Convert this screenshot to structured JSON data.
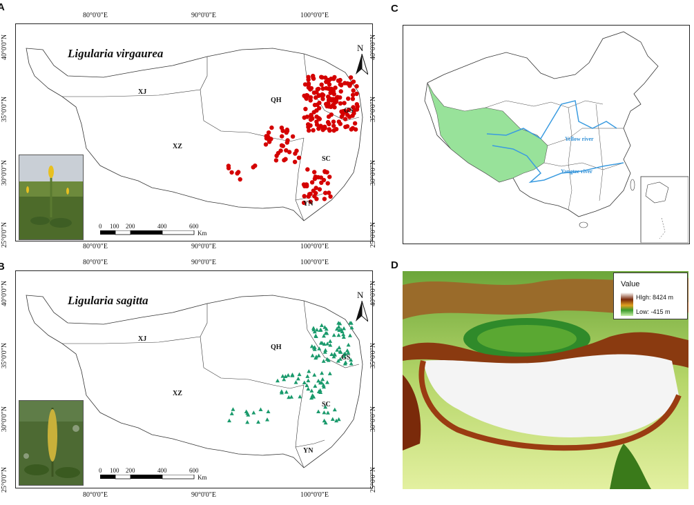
{
  "panels": {
    "a": {
      "letter": "A",
      "species": "Ligularia virgaurea"
    },
    "b": {
      "letter": "B",
      "species": "Ligularia sagitta"
    },
    "c": {
      "letter": "C",
      "rivers": [
        "Yellow river",
        "Yangtze river"
      ]
    },
    "d": {
      "letter": "D",
      "legend_title": "Value",
      "legend_high": "HIgh: 8424 m",
      "legend_low": "Low: -415 m"
    }
  },
  "lon_ticks": [
    "80°0'0\"E",
    "90°0'0\"E",
    "100°0'0\"E"
  ],
  "lat_ticks": [
    "40°0'0\"N",
    "35°0'0\"N",
    "30°0'0\"N",
    "25°0'0\"N"
  ],
  "regions": {
    "xj": "XJ",
    "qh": "QH",
    "xz": "XZ",
    "gs": "GS",
    "sc": "SC",
    "yn": "YN"
  },
  "scale": {
    "values": [
      "0",
      "100",
      "200",
      "400",
      "600"
    ],
    "unit": "Km"
  },
  "north": "N",
  "colors": {
    "virgaurea_points": "#d40000",
    "sagitta_points": "#1a9a6c",
    "plateau_fill": "#98e29a",
    "river": "#3a9be0"
  }
}
